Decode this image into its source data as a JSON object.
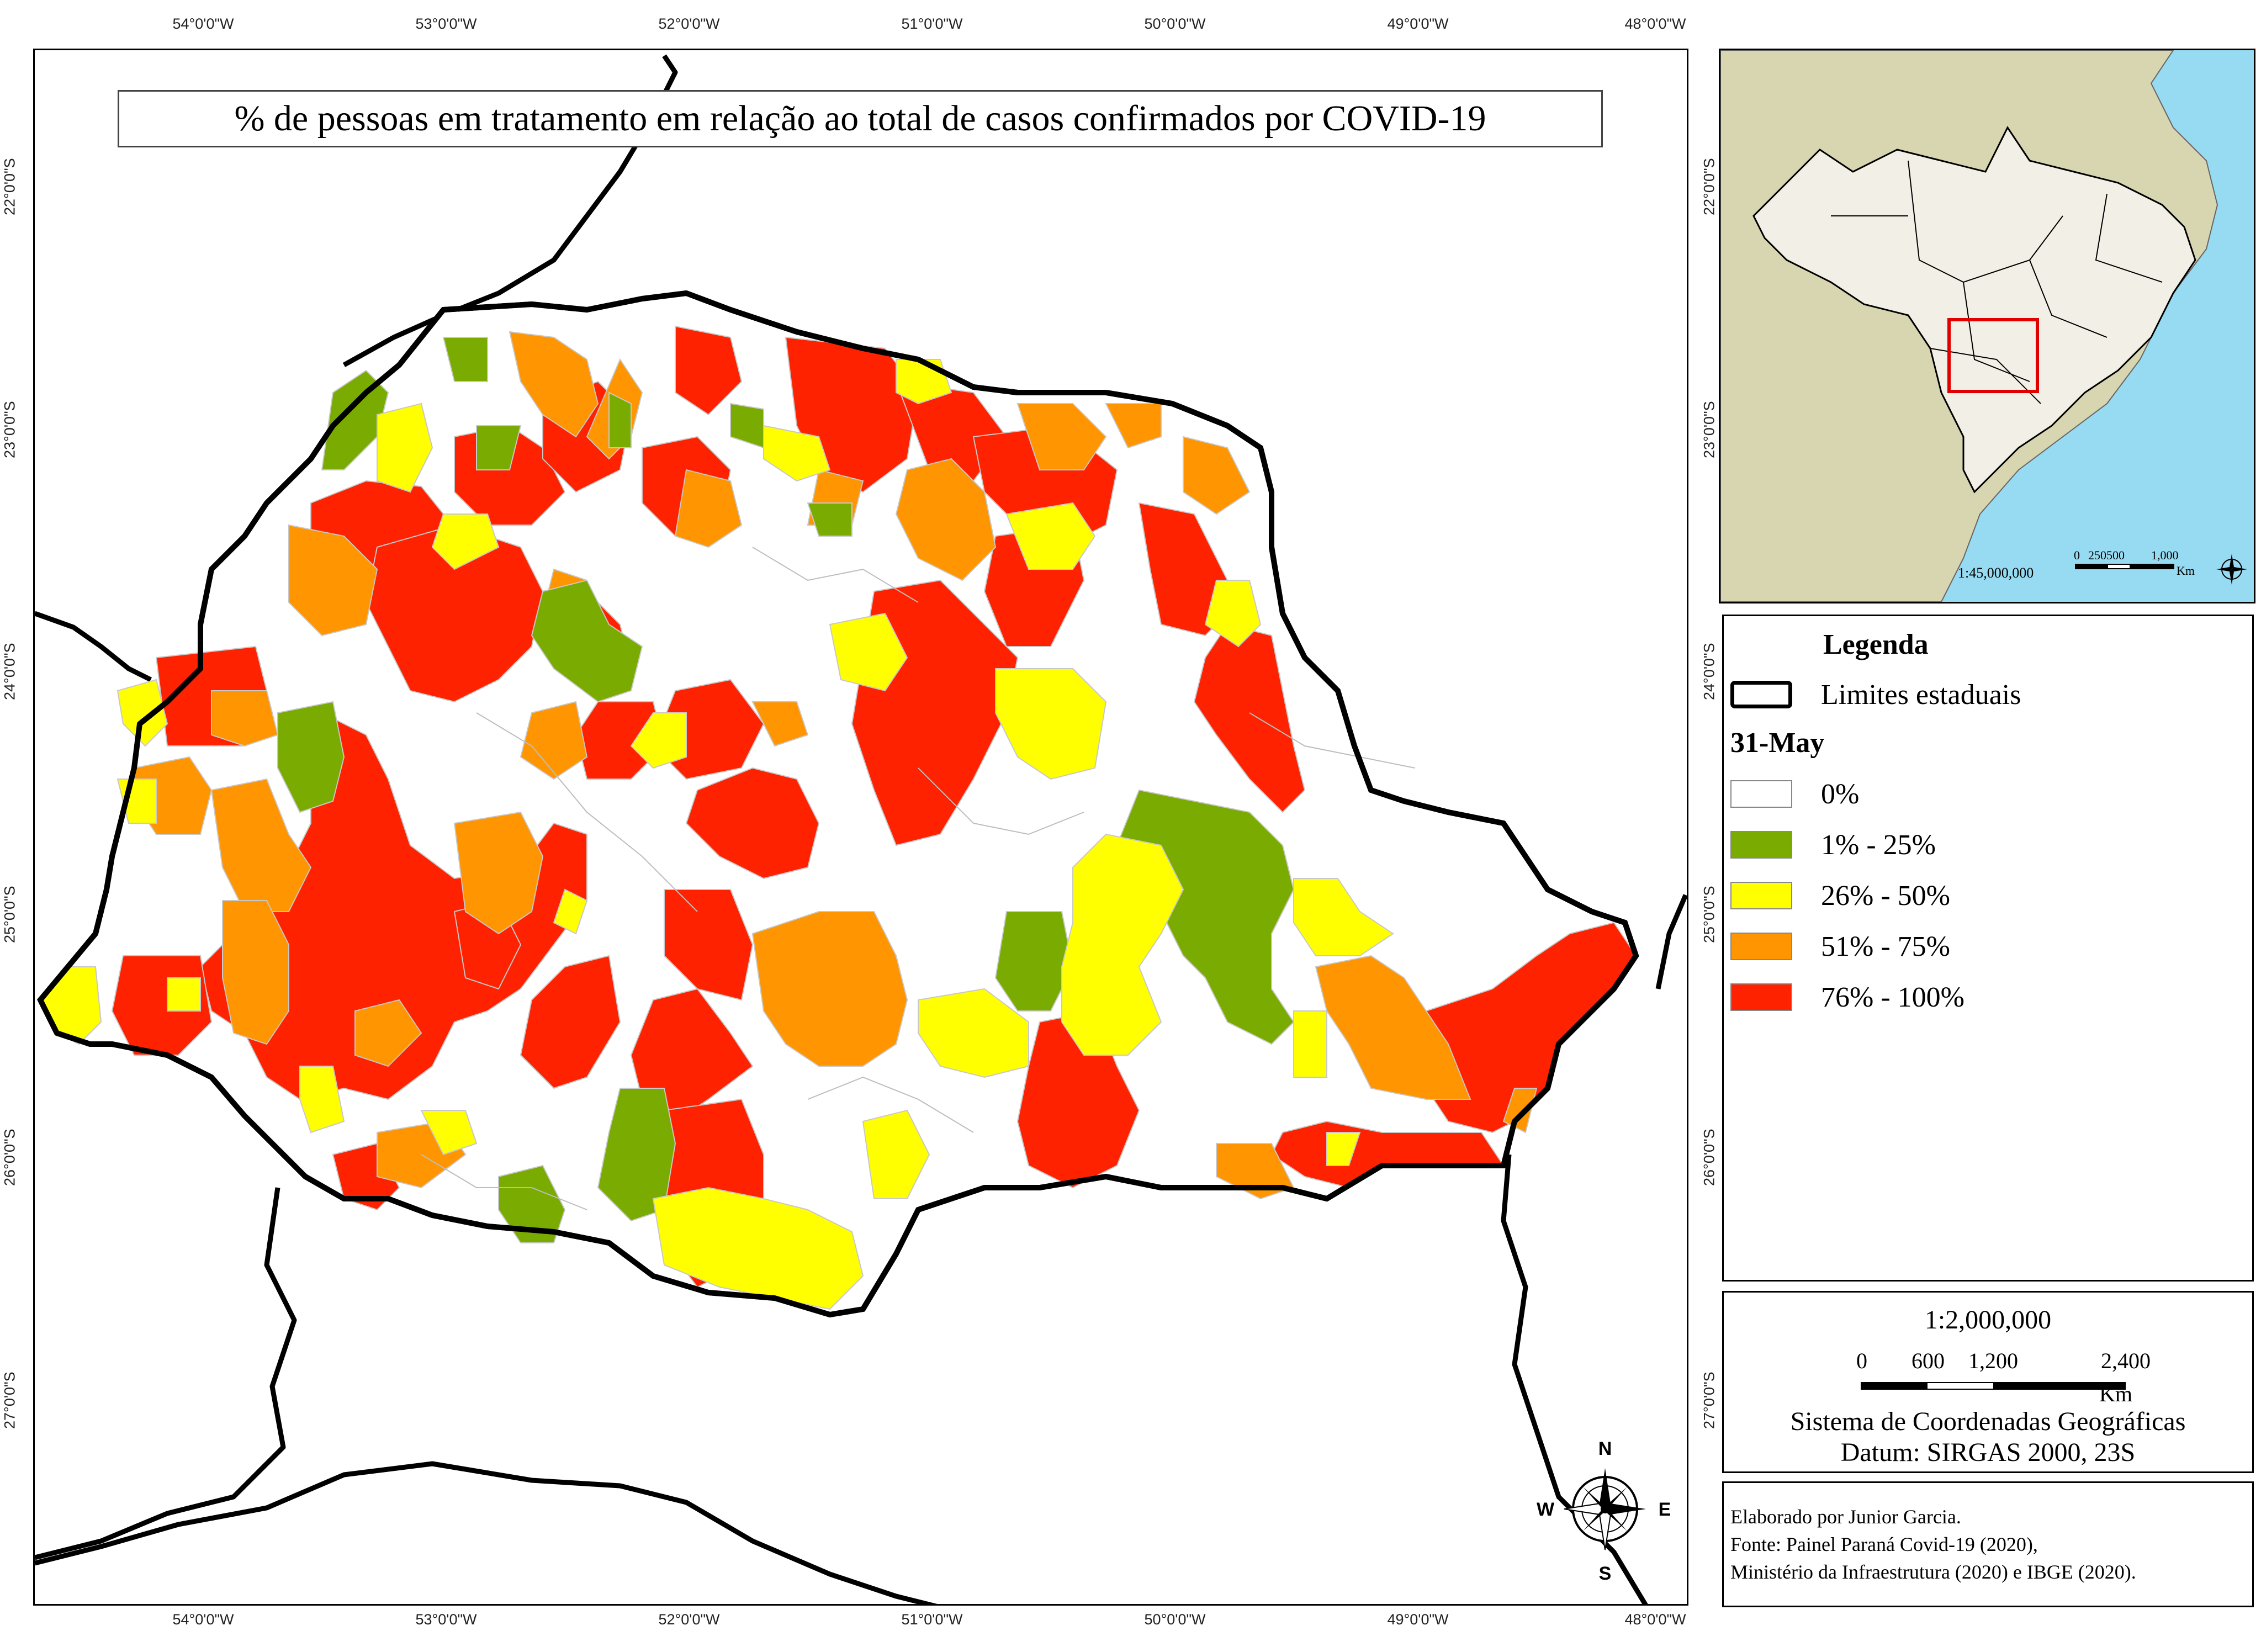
{
  "map": {
    "title": "% de pessoas em tratamento em relação ao total de casos confirmados por COVID-19",
    "longitude_labels": [
      "54°0'0\"W",
      "53°0'0\"W",
      "52°0'0\"W",
      "51°0'0\"W",
      "50°0'0\"W",
      "49°0'0\"W",
      "48°0'0\"W"
    ],
    "latitude_labels": [
      "22°0'0\"S",
      "23°0'0\"S",
      "24°0'0\"S",
      "25°0'0\"S",
      "26°0'0\"S",
      "27°0'0\"S"
    ],
    "compass": {
      "n": "N",
      "s": "S",
      "e": "E",
      "w": "W"
    }
  },
  "colors": {
    "class_0": "#ffffff",
    "class_1_25": "#7aab00",
    "class_26_50": "#ffff00",
    "class_51_75": "#ff9500",
    "class_76_100": "#ff2200",
    "state_border": "#000000",
    "ocean": "#97dbf2",
    "land_inset": "#d8d6b0",
    "brazil_inset": "#f2f0e6",
    "inset_highlight": "#e00000"
  },
  "legend": {
    "title": "Legenda",
    "border_label": "Limites estaduais",
    "date_label": "31-May",
    "classes": [
      {
        "label": "0%",
        "color": "#ffffff"
      },
      {
        "label": "1% - 25%",
        "color": "#7aab00"
      },
      {
        "label": "26% - 50%",
        "color": "#ffff00"
      },
      {
        "label": "51% - 75%",
        "color": "#ff9500"
      },
      {
        "label": "76% - 100%",
        "color": "#ff2200"
      }
    ]
  },
  "scale": {
    "ratio": "1:2,000,000",
    "ticks": [
      "0",
      "600",
      "1,200",
      "2,400"
    ],
    "unit": "Km",
    "coord_system": "Sistema de Coordenadas Geográficas",
    "datum": "Datum: SIRGAS 2000, 23S"
  },
  "inset": {
    "ratio": "1:45,000,000",
    "ticks": [
      "0",
      "250500",
      "1,000"
    ],
    "unit": "Km"
  },
  "credits": {
    "line1": "Elaborado por Junior Garcia.",
    "line2": "Fonte: Painel Paraná Covid-19 (2020),",
    "line3": "Ministério da Infraestrutura (2020) e IBGE (2020)."
  }
}
